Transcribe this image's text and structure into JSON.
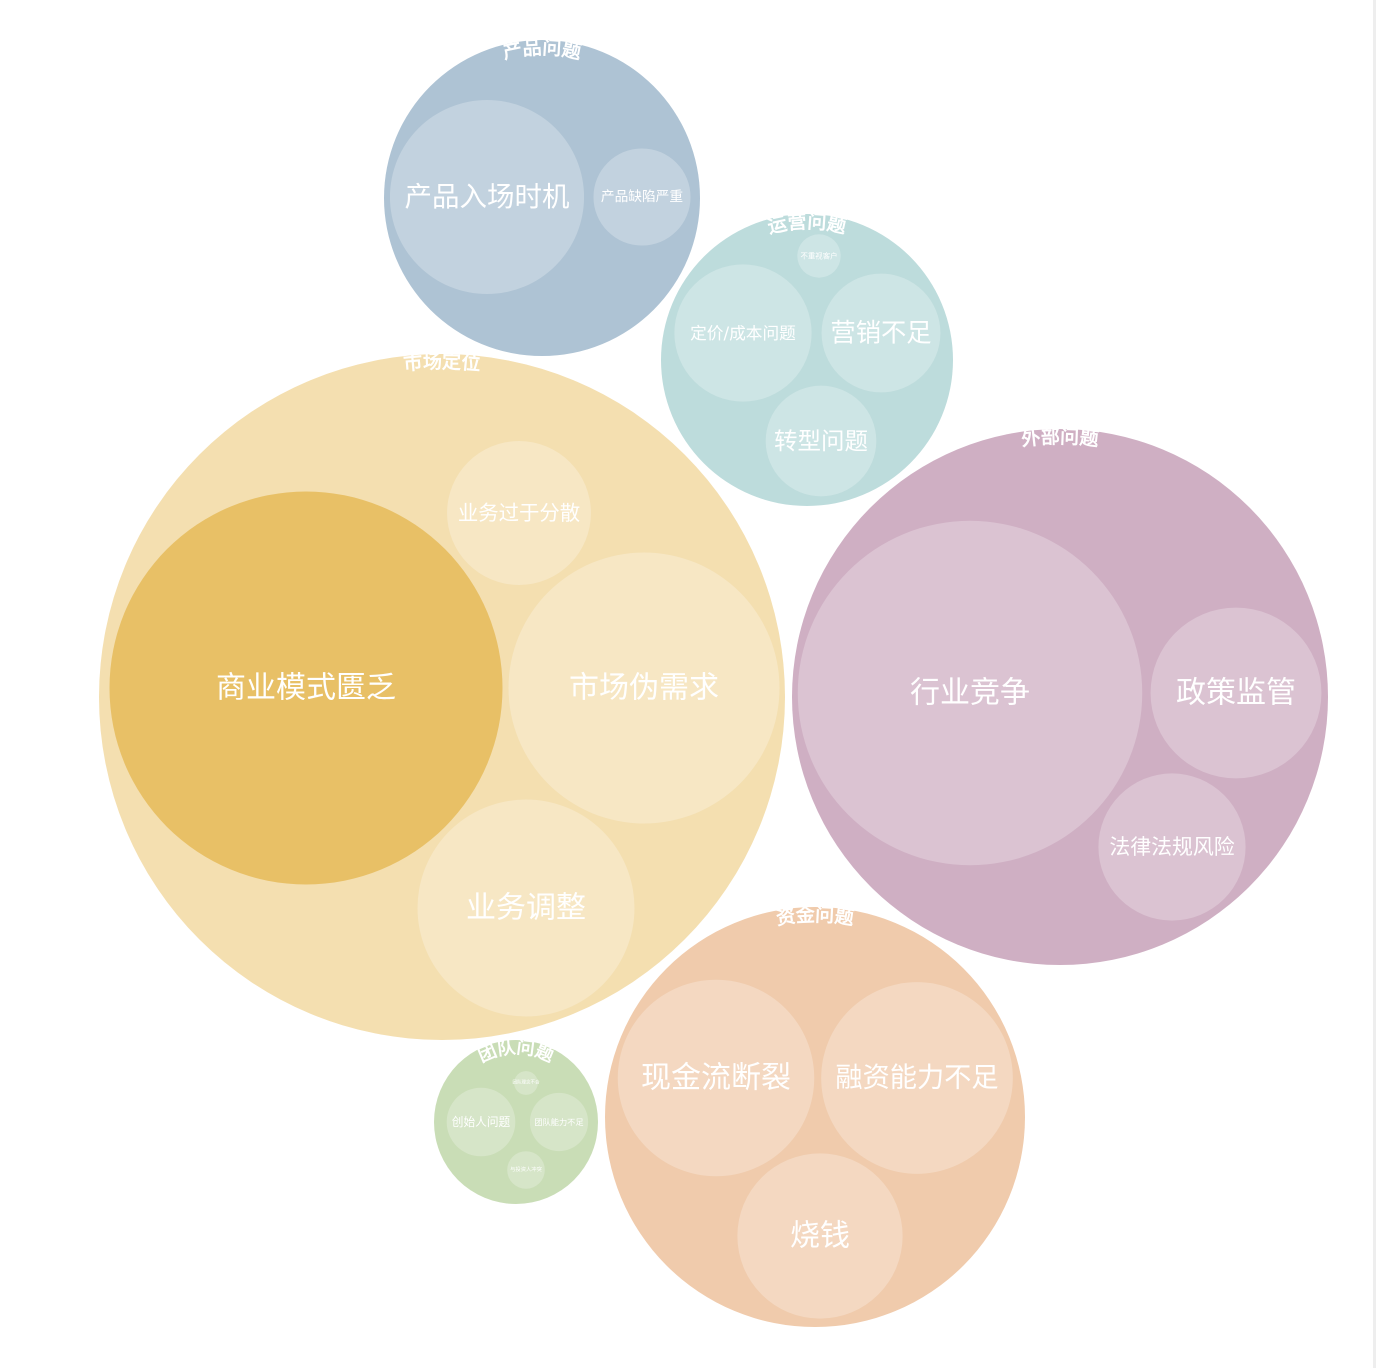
{
  "chart_data": {
    "type": "circle-packing",
    "groups": [
      {
        "name": "产品问题",
        "color": "#aec3d4",
        "children": [
          {
            "name": "产品入场时机",
            "value": 20
          },
          {
            "name": "产品缺陷严重",
            "value": 5
          }
        ]
      },
      {
        "name": "运营问题",
        "color": "#bddcdc",
        "children": [
          {
            "name": "不重视客户",
            "value": 1
          },
          {
            "name": "定价/成本问题",
            "value": 10
          },
          {
            "name": "营销不足",
            "value": 7.5
          },
          {
            "name": "转型问题",
            "value": 6.5
          }
        ]
      },
      {
        "name": "市场定位",
        "color": "#f4dfb0",
        "children": [
          {
            "name": "商业模式匮乏",
            "value": 82,
            "highlight_color": "#e8c066"
          },
          {
            "name": "业务过于分散",
            "value": 11
          },
          {
            "name": "市场伪需求",
            "value": 39
          },
          {
            "name": "业务调整",
            "value": 25
          }
        ]
      },
      {
        "name": "外部问题",
        "color": "#cfafc3",
        "children": [
          {
            "name": "行业竞争",
            "value": 63
          },
          {
            "name": "政策监管",
            "value": 15.5
          },
          {
            "name": "法律法规风险",
            "value": 11.5
          }
        ]
      },
      {
        "name": "资金问题",
        "color": "#f0cbac",
        "children": [
          {
            "name": "现金流断裂",
            "value": 20.5
          },
          {
            "name": "融资能力不足",
            "value": 19.5
          },
          {
            "name": "烧钱",
            "value": 14.5
          }
        ]
      },
      {
        "name": "团队问题",
        "color": "#c9ddb6",
        "children": [
          {
            "name": "团队理念不合",
            "value": 0.3
          },
          {
            "name": "创始人问题",
            "value": 2.5
          },
          {
            "name": "团队能力不足",
            "value": 1.8
          },
          {
            "name": "与投资人冲突",
            "value": 0.75
          }
        ]
      }
    ]
  }
}
